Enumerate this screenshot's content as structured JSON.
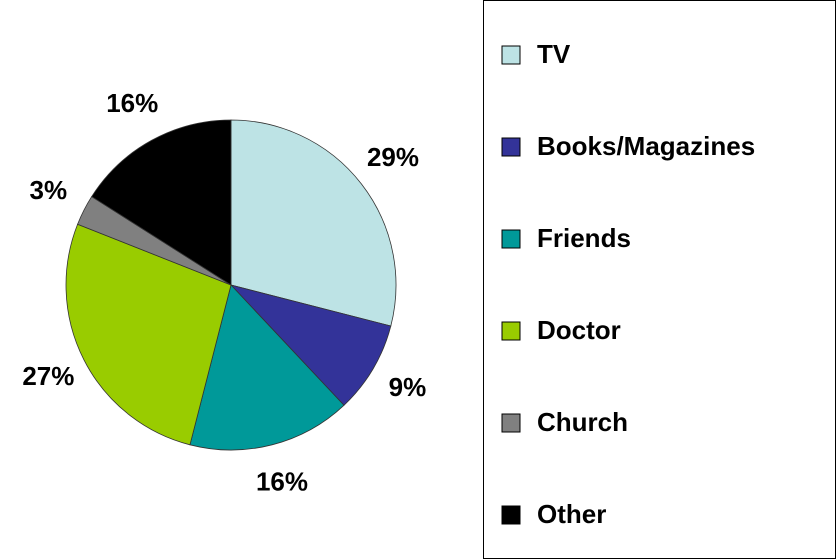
{
  "chart_data": {
    "type": "pie",
    "categories": [
      "TV",
      "Books/Magazines",
      "Friends",
      "Doctor",
      "Church",
      "Other"
    ],
    "values": [
      29,
      9,
      16,
      27,
      3,
      16
    ],
    "value_labels": [
      "29%",
      "9%",
      "16%",
      "27%",
      "3%",
      "16%"
    ],
    "colors": [
      "#bde3e5",
      "#333399",
      "#009999",
      "#99cc00",
      "#808080",
      "#000000"
    ],
    "legend": "right"
  }
}
